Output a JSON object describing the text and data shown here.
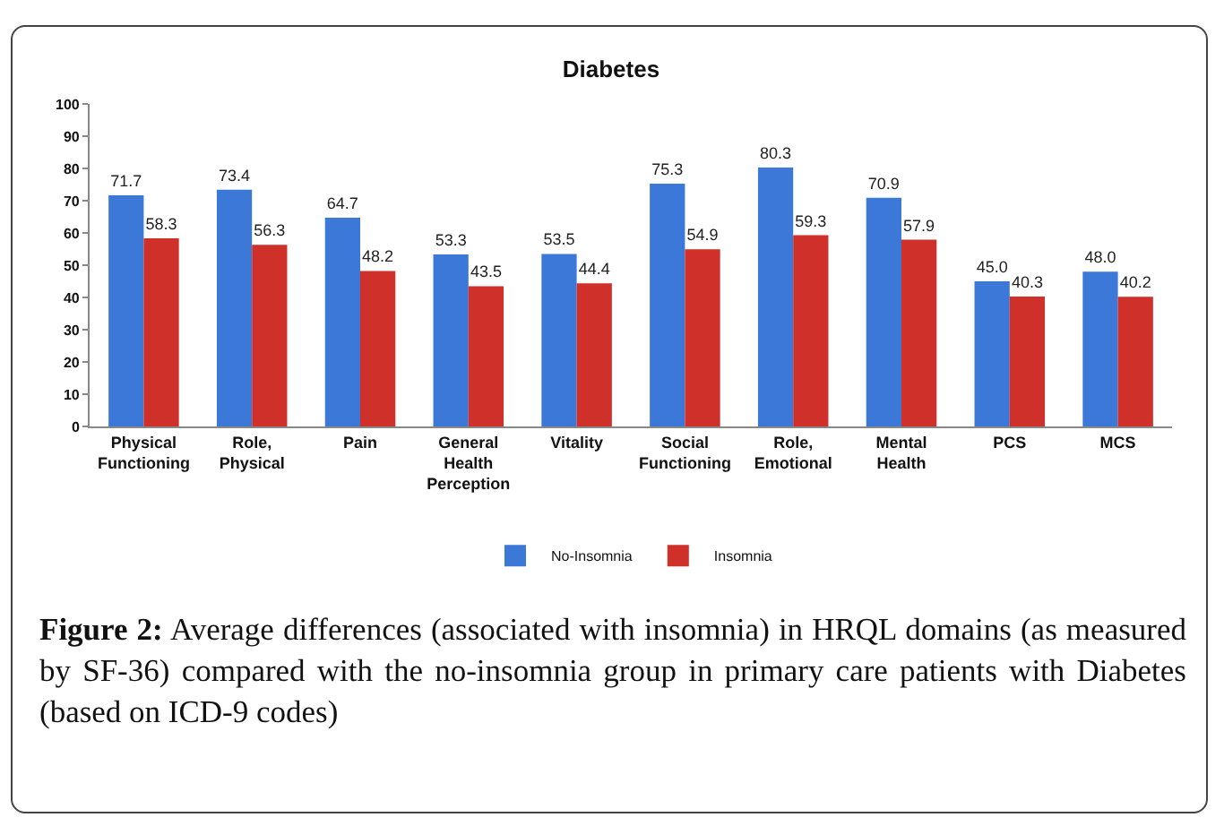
{
  "chart_data": {
    "type": "bar",
    "title": "Diabetes",
    "categories": [
      "Physical Functioning",
      "Role, Physical",
      "Pain",
      "General Health Perception",
      "Vitality",
      "Social Functioning",
      "Role, Emotional",
      "Mental Health",
      "PCS",
      "MCS"
    ],
    "series": [
      {
        "name": "No-Insomnia",
        "color": "#3c78d8",
        "values": [
          71.7,
          73.4,
          64.7,
          53.3,
          53.5,
          75.3,
          80.3,
          70.9,
          45.0,
          48.0
        ],
        "value_labels": [
          "71.7",
          "73.4",
          "64.7",
          "53.3",
          "53.5",
          "75.3",
          "80.3",
          "70.9",
          "45.0",
          "48.0"
        ]
      },
      {
        "name": "Insomnia",
        "color": "#d0302a",
        "values": [
          58.3,
          56.3,
          48.2,
          43.5,
          44.4,
          54.9,
          59.3,
          57.9,
          40.3,
          40.2
        ],
        "value_labels": [
          "58.3",
          "56.3",
          "48.2",
          "43.5",
          "44.4",
          "54.9",
          "59.3",
          "57.9",
          "40.3",
          "40.2"
        ]
      }
    ],
    "ylim": [
      0,
      100
    ],
    "yticks": [
      0,
      10,
      20,
      30,
      40,
      50,
      60,
      70,
      80,
      90,
      100
    ],
    "grid": false,
    "legend": "bottom",
    "annotations": [
      "Figure 2:",
      "Average differences (associated with insomnia) in HRQL domains (as measured by SF-36) compared with the no-insomnia group in primary care patients with Diabetes (based on ICD-9 codes)"
    ]
  }
}
